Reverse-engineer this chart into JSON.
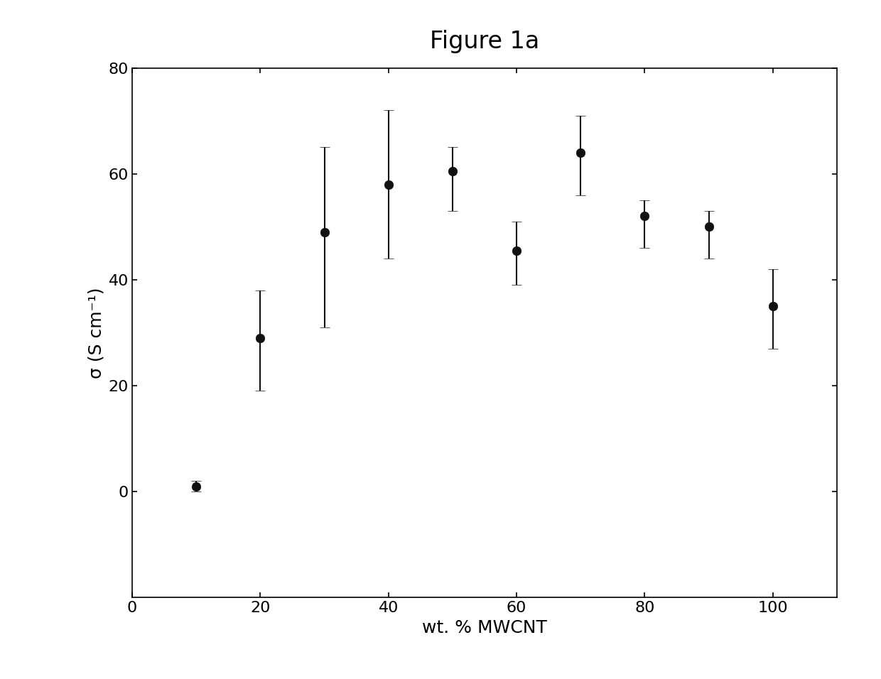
{
  "title": "Figure 1a",
  "xlabel": "wt. % MWCNT",
  "ylabel": "σ (S cm⁻¹)",
  "x": [
    10,
    20,
    30,
    40,
    50,
    60,
    70,
    80,
    90,
    100
  ],
  "y": [
    1.0,
    29.0,
    49.0,
    58.0,
    60.5,
    45.5,
    64.0,
    52.0,
    50.0,
    35.0
  ],
  "yerr_lower": [
    1.0,
    10.0,
    18.0,
    14.0,
    7.5,
    6.5,
    8.0,
    6.0,
    6.0,
    8.0
  ],
  "yerr_upper": [
    1.0,
    9.0,
    16.0,
    14.0,
    4.5,
    5.5,
    7.0,
    3.0,
    3.0,
    7.0
  ],
  "xlim": [
    0,
    110
  ],
  "ylim": [
    -20,
    80
  ],
  "yticks": [
    0,
    20,
    40,
    60,
    80
  ],
  "xticks": [
    0,
    20,
    40,
    60,
    80,
    100
  ],
  "marker_color": "#111111",
  "marker_size": 9,
  "capsize": 5,
  "title_fontsize": 24,
  "label_fontsize": 18,
  "tick_fontsize": 16,
  "background_color": "#ffffff",
  "figure_background": "#ffffff"
}
